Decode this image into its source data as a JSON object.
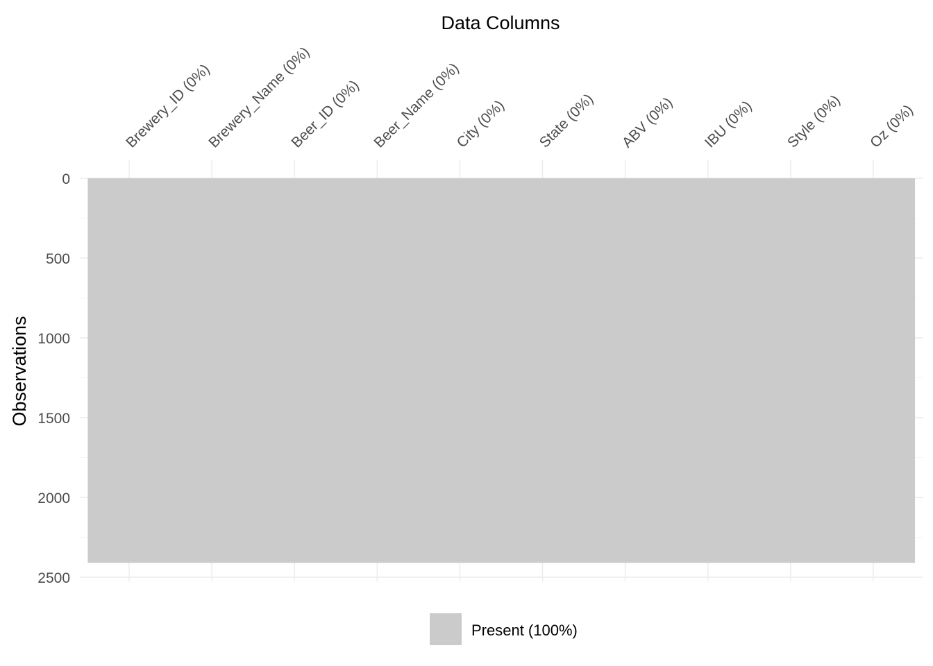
{
  "chart_data": {
    "type": "heatmap",
    "title": "",
    "xlabel": "Data Columns",
    "ylabel": "Observations",
    "columns": [
      "Brewery_ID (0%)",
      "Brewery_Name (0%)",
      "Beer_ID (0%)",
      "Beer_Name (0%)",
      "City (0%)",
      "State (0%)",
      "ABV (0%)",
      "IBU (0%)",
      "Style (0%)",
      "Oz (0%)"
    ],
    "observations": 2410,
    "ylim": [
      0,
      2500
    ],
    "y_reversed": true,
    "yticks": [
      0,
      500,
      1000,
      1500,
      2000,
      2500
    ],
    "yticks_minor": [
      250,
      750,
      1250,
      1750,
      2250
    ],
    "series": [
      {
        "name": "Present (100%)",
        "percent": 100,
        "color": "#cbcbcb"
      }
    ],
    "legend": {
      "position": "bottom",
      "entries": [
        "Present (100%)"
      ]
    },
    "grid": true
  }
}
